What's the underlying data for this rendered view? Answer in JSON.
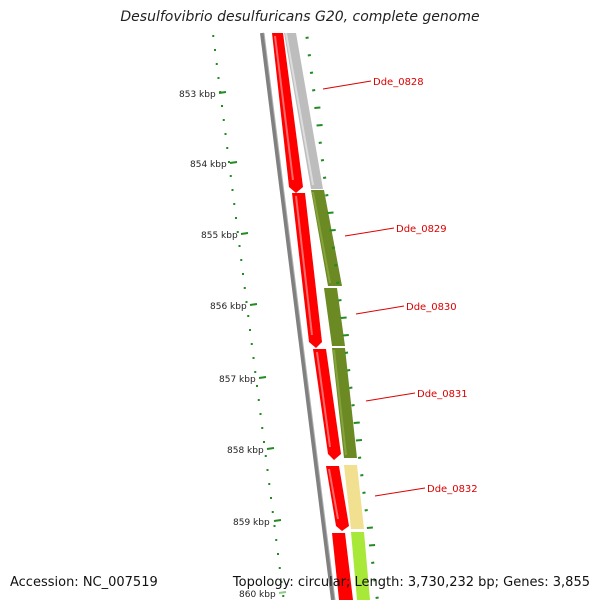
{
  "header": {
    "title": "Desulfovibrio desulfuricans G20, complete genome"
  },
  "footer": {
    "accession": "Accession: NC_007519",
    "summary": "Topology: circular; Length: 3,730,232 bp; Genes: 3,855"
  },
  "ticks": [
    "853 kbp",
    "854 kbp",
    "855 kbp",
    "856 kbp",
    "857 kbp",
    "858 kbp",
    "859 kbp",
    "860 kbp"
  ],
  "genes": [
    "Dde_0828",
    "Dde_0829",
    "Dde_0830",
    "Dde_0831",
    "Dde_0832"
  ],
  "colors": {
    "forward_cds": "#ff0000",
    "cog_grey": "#bdbdbd",
    "cog_olive": "#6b8a24",
    "cog_khaki": "#f0e090",
    "cog_lime": "#a8e838",
    "backbone": "#808080",
    "tick": "#228b22",
    "label": "#dd0000"
  }
}
